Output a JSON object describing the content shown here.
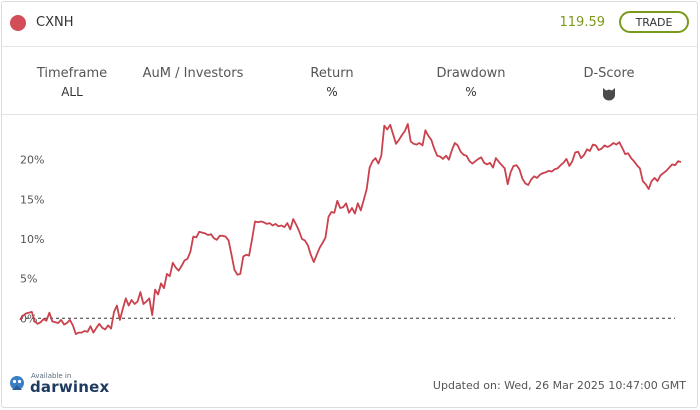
{
  "header": {
    "ticker": "CXNH",
    "price": "119.59",
    "trade_label": "TRADE",
    "accent_color": "#d24d57",
    "price_color": "#7a9a1d"
  },
  "stats": {
    "timeframe": {
      "label": "Timeframe",
      "value": "ALL"
    },
    "aum": {
      "label": "AuM / Investors",
      "value": ""
    },
    "return": {
      "label": "Return",
      "value": "%"
    },
    "drawdown": {
      "label": "Drawdown",
      "value": "%"
    },
    "dscore": {
      "label": "D-Score",
      "icon": "dscore-badge-icon"
    }
  },
  "footer": {
    "available_text": "Available in",
    "brand": "darwinex",
    "brand_icon": "darwinex-logo-icon",
    "updated": "Updated on: Wed, 26 Mar 2025 10:47:00 GMT"
  },
  "chart_data": {
    "type": "line",
    "ylim": [
      -4,
      25
    ],
    "yticks": [
      0,
      5,
      10,
      15,
      20
    ],
    "ytick_labels": [
      "0%",
      "5%",
      "10%",
      "15%",
      "20%"
    ],
    "baseline": 0,
    "grid": false,
    "line_color": "#c9424e",
    "y": [
      -0.2,
      0.3,
      0.6,
      0.7,
      0.8,
      -0.4,
      -0.7,
      -0.5,
      -0.1,
      -0.3,
      0.7,
      -0.4,
      -0.5,
      -0.6,
      -0.2,
      -0.8,
      -0.6,
      -0.2,
      -0.9,
      -2.0,
      -1.8,
      -1.8,
      -1.6,
      -1.7,
      -1.0,
      -1.8,
      -1.2,
      -0.7,
      -1.2,
      -1.4,
      -0.9,
      -1.3,
      0.8,
      1.6,
      -0.2,
      1.2,
      2.5,
      1.6,
      2.3,
      1.8,
      2.1,
      3.3,
      1.8,
      2.1,
      2.5,
      0.4,
      3.6,
      3.0,
      4.4,
      3.8,
      5.6,
      5.3,
      7.0,
      6.4,
      6.0,
      6.6,
      7.3,
      7.5,
      8.4,
      10.3,
      10.2,
      10.9,
      10.8,
      10.7,
      10.5,
      10.6,
      10.1,
      9.9,
      10.4,
      10.4,
      10.3,
      9.8,
      8.0,
      6.1,
      5.5,
      5.6,
      7.8,
      8.0,
      7.9,
      10.0,
      12.2,
      12.1,
      12.2,
      12.1,
      11.9,
      12.0,
      11.7,
      11.9,
      11.6,
      11.7,
      11.5,
      12.0,
      11.2,
      12.5,
      11.8,
      11.0,
      10.0,
      9.8,
      9.2,
      8.0,
      7.1,
      8.0,
      8.9,
      9.5,
      10.2,
      12.8,
      13.4,
      13.3,
      14.8,
      13.9,
      14.0,
      14.5,
      13.3,
      13.9,
      13.2,
      14.5,
      13.6,
      14.9,
      16.3,
      19.0,
      19.8,
      20.2,
      19.5,
      20.5,
      24.3,
      23.8,
      24.4,
      23.2,
      22.0,
      22.5,
      23.1,
      23.6,
      24.5,
      22.3,
      22.0,
      21.9,
      22.1,
      21.8,
      23.7,
      23.0,
      22.5,
      21.4,
      20.5,
      20.4,
      20.1,
      20.5,
      20.0,
      21.2,
      22.1,
      21.8,
      21.0,
      20.6,
      20.5,
      19.8,
      19.5,
      19.8,
      20.1,
      20.3,
      19.6,
      19.4,
      19.6,
      19.0,
      20.2,
      19.7,
      19.3,
      18.9,
      16.9,
      18.4,
      19.2,
      19.3,
      18.8,
      17.6,
      17.0,
      16.8,
      17.5,
      17.9,
      17.7,
      18.1,
      18.3,
      18.4,
      18.6,
      18.5,
      18.8,
      18.9,
      19.3,
      19.6,
      20.1,
      19.2,
      19.8,
      20.9,
      21.0,
      20.2,
      20.6,
      21.3,
      21.1,
      21.9,
      21.8,
      21.2,
      21.4,
      21.8,
      21.6,
      21.8,
      22.1,
      21.9,
      22.2,
      21.5,
      20.7,
      20.8,
      20.2,
      19.8,
      19.3,
      18.9,
      17.3,
      16.9,
      16.3,
      17.3,
      17.7,
      17.3,
      18.0,
      18.3,
      18.6,
      19.0,
      19.4,
      19.3,
      19.8,
      19.7
    ]
  }
}
